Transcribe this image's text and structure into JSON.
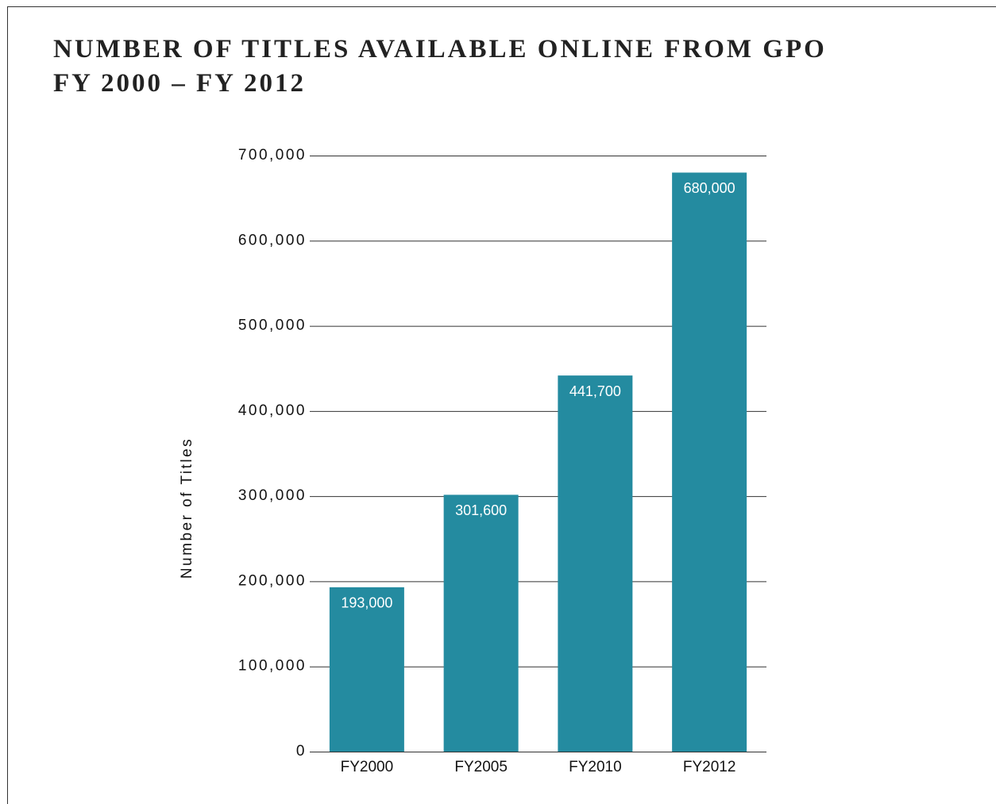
{
  "chart_data": {
    "type": "bar",
    "title": "NUMBER OF TITLES AVAILABLE ONLINE FROM GPO",
    "subtitle": "FY 2000 – FY 2012",
    "y_axis_label": "Number of Titles",
    "categories": [
      "FY2000",
      "FY2005",
      "FY2010",
      "FY2012"
    ],
    "values": [
      193000,
      301600,
      441700,
      680000
    ],
    "value_labels": [
      "193,000",
      "301,600",
      "441,700",
      "680,000"
    ],
    "color": "#248ba0",
    "ylim": [
      0,
      700000
    ],
    "yticks": [
      0,
      {
        "value": 100000,
        "label": "100,000"
      },
      {
        "value": 200000,
        "label": "200,000"
      },
      {
        "value": 300000,
        "label": "300,000"
      },
      {
        "value": 400000,
        "label": "400,000"
      },
      {
        "value": 500000,
        "label": "500,000"
      },
      {
        "value": 600000,
        "label": "600,000"
      },
      {
        "value": 700000,
        "label": "700,000"
      }
    ],
    "grid": true
  }
}
